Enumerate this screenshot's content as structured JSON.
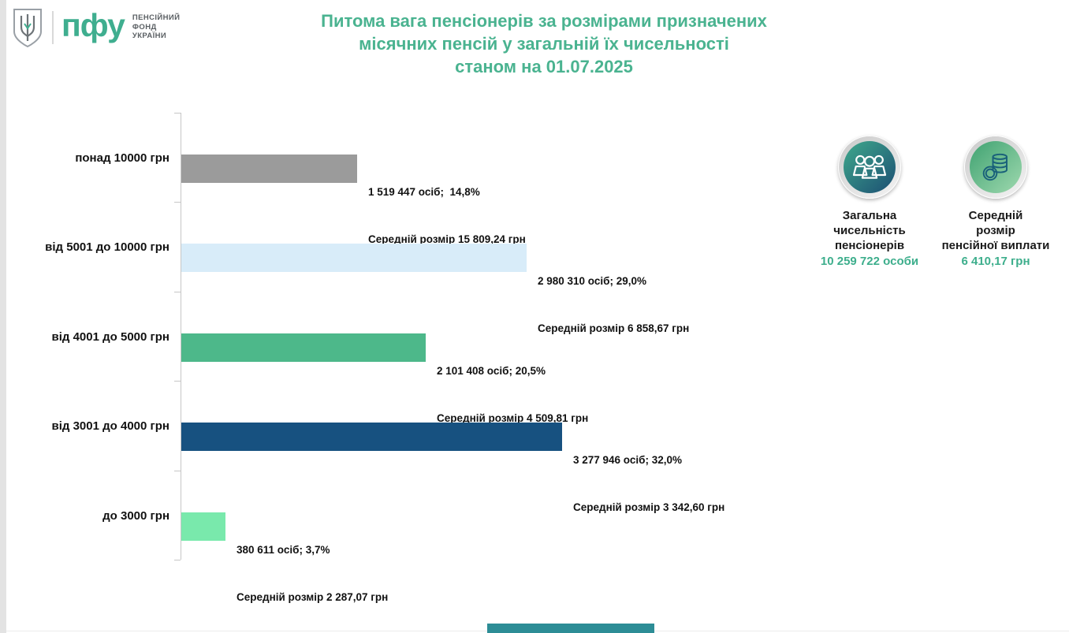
{
  "logo": {
    "abbr": "пфу",
    "org_line1": "ПЕНСІЙНИЙ",
    "org_line2": "ФОНД",
    "org_line3": "УКРАЇНИ"
  },
  "title": {
    "line1": "Питома вага пенсіонерів за розмірами призначених",
    "line2": "місячних пенсій у загальній їх чисельності",
    "line3": "станом на 01.07.2025"
  },
  "colors": {
    "title_green": "#4ab390",
    "value_green": "#3dae8c",
    "axis_gray": "#c6c6c6",
    "bottom_bar_teal": "#2d8d96",
    "badge_people_gradient": [
      "#3fa98c",
      "#1c4e73"
    ],
    "badge_coins_gradient": [
      "#3fa271",
      "#9fd9af"
    ]
  },
  "chart_data": {
    "type": "bar",
    "orientation": "horizontal",
    "categories": [
      "понад 10000 грн",
      "від 5001 до 10000 грн",
      "від 4001 до 5000 грн",
      "від 3001 до 4000 грн",
      "до 3000 грн"
    ],
    "values_percent": [
      14.8,
      29.0,
      20.5,
      32.0,
      3.7
    ],
    "counts": [
      1519447,
      2980310,
      2101408,
      3277946,
      380611
    ],
    "average_sizes_uah": [
      "15 809,24",
      "6 858,67",
      "4 509,81",
      "3 342,60",
      "2 287,07"
    ],
    "bar_colors": [
      "#9b9b9b",
      "#d8ecf9",
      "#4db88a",
      "#175180",
      "#79e9ac"
    ],
    "labels_line1": [
      "1 519 447 осіб;  14,8%",
      "2 980 310 осіб; 29,0%",
      "2 101 408 осіб; 20,5%",
      "3 277 946 осіб; 32,0%",
      "380 611 осіб; 3,7%"
    ],
    "labels_line2": [
      "Середній розмір 15 809,24 грн",
      "Середній розмір 6 858,67 грн",
      "Середній розмір 4 509,81 грн",
      "Середній розмір 3 342,60 грн",
      "Середній розмір 2 287,07 грн"
    ],
    "xlim_percent": [
      0,
      35
    ],
    "grid": false,
    "legend": "none"
  },
  "stats": [
    {
      "icon": "people",
      "label_line1": "Загальна",
      "label_line2": "чисельність",
      "label_line3": "пенсіонерів",
      "value": "10 259 722 особи"
    },
    {
      "icon": "coins",
      "label_line1": "Середній",
      "label_line2": "розмір",
      "label_line3": "пенсійної виплати",
      "value": "6 410,17 грн"
    }
  ]
}
